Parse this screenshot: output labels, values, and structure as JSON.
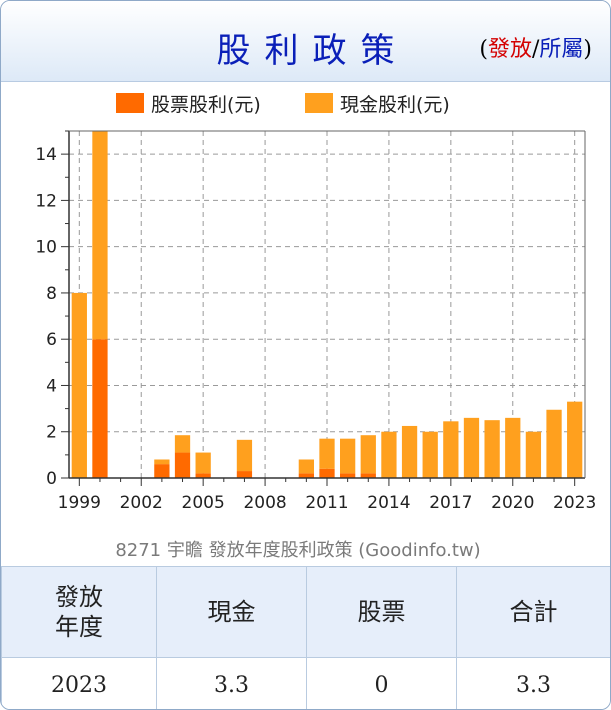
{
  "header": {
    "title": "股利政策",
    "link_open": "(",
    "link_issue": "發放",
    "link_sep": "/",
    "link_belong": "所屬",
    "link_close": ")"
  },
  "colors": {
    "stock_dividend": "#ff6a00",
    "cash_dividend": "#ffa01e",
    "title_blue": "#0a1fb8",
    "link_red": "#d40000"
  },
  "chart_data": {
    "type": "bar",
    "stacked": true,
    "legend": [
      "股票股利(元)",
      "現金股利(元)"
    ],
    "legend_position": "top",
    "caption": "8271 宇瞻 發放年度股利政策 (Goodinfo.tw)",
    "grid": true,
    "ylim": [
      0,
      15
    ],
    "yticks": [
      0,
      2,
      4,
      6,
      8,
      10,
      12,
      14
    ],
    "xticks": [
      1999,
      2002,
      2005,
      2008,
      2011,
      2014,
      2017,
      2020,
      2023
    ],
    "categories": [
      1999,
      2000,
      2001,
      2002,
      2003,
      2004,
      2005,
      2006,
      2007,
      2008,
      2009,
      2010,
      2011,
      2012,
      2013,
      2014,
      2015,
      2016,
      2017,
      2018,
      2019,
      2020,
      2021,
      2022,
      2023
    ],
    "series": [
      {
        "name": "股票股利(元)",
        "values": [
          0,
          6,
          0,
          0,
          0.6,
          1.1,
          0.2,
          0,
          0.3,
          0,
          0,
          0.2,
          0.4,
          0.2,
          0.2,
          0,
          0,
          0,
          0,
          0,
          0,
          0,
          0,
          0,
          0
        ]
      },
      {
        "name": "現金股利(元)",
        "values": [
          8,
          9,
          0,
          0,
          0.2,
          0.75,
          0.9,
          0,
          1.35,
          0,
          0,
          0.6,
          1.3,
          1.5,
          1.65,
          2.0,
          2.25,
          2.0,
          2.45,
          2.6,
          2.5,
          2.6,
          2.0,
          2.95,
          3.3
        ]
      }
    ]
  },
  "table": {
    "headers": [
      "發放\n年度",
      "現金",
      "股票",
      "合計"
    ],
    "rows": [
      [
        "2023",
        "3.3",
        "0",
        "3.3"
      ]
    ]
  }
}
